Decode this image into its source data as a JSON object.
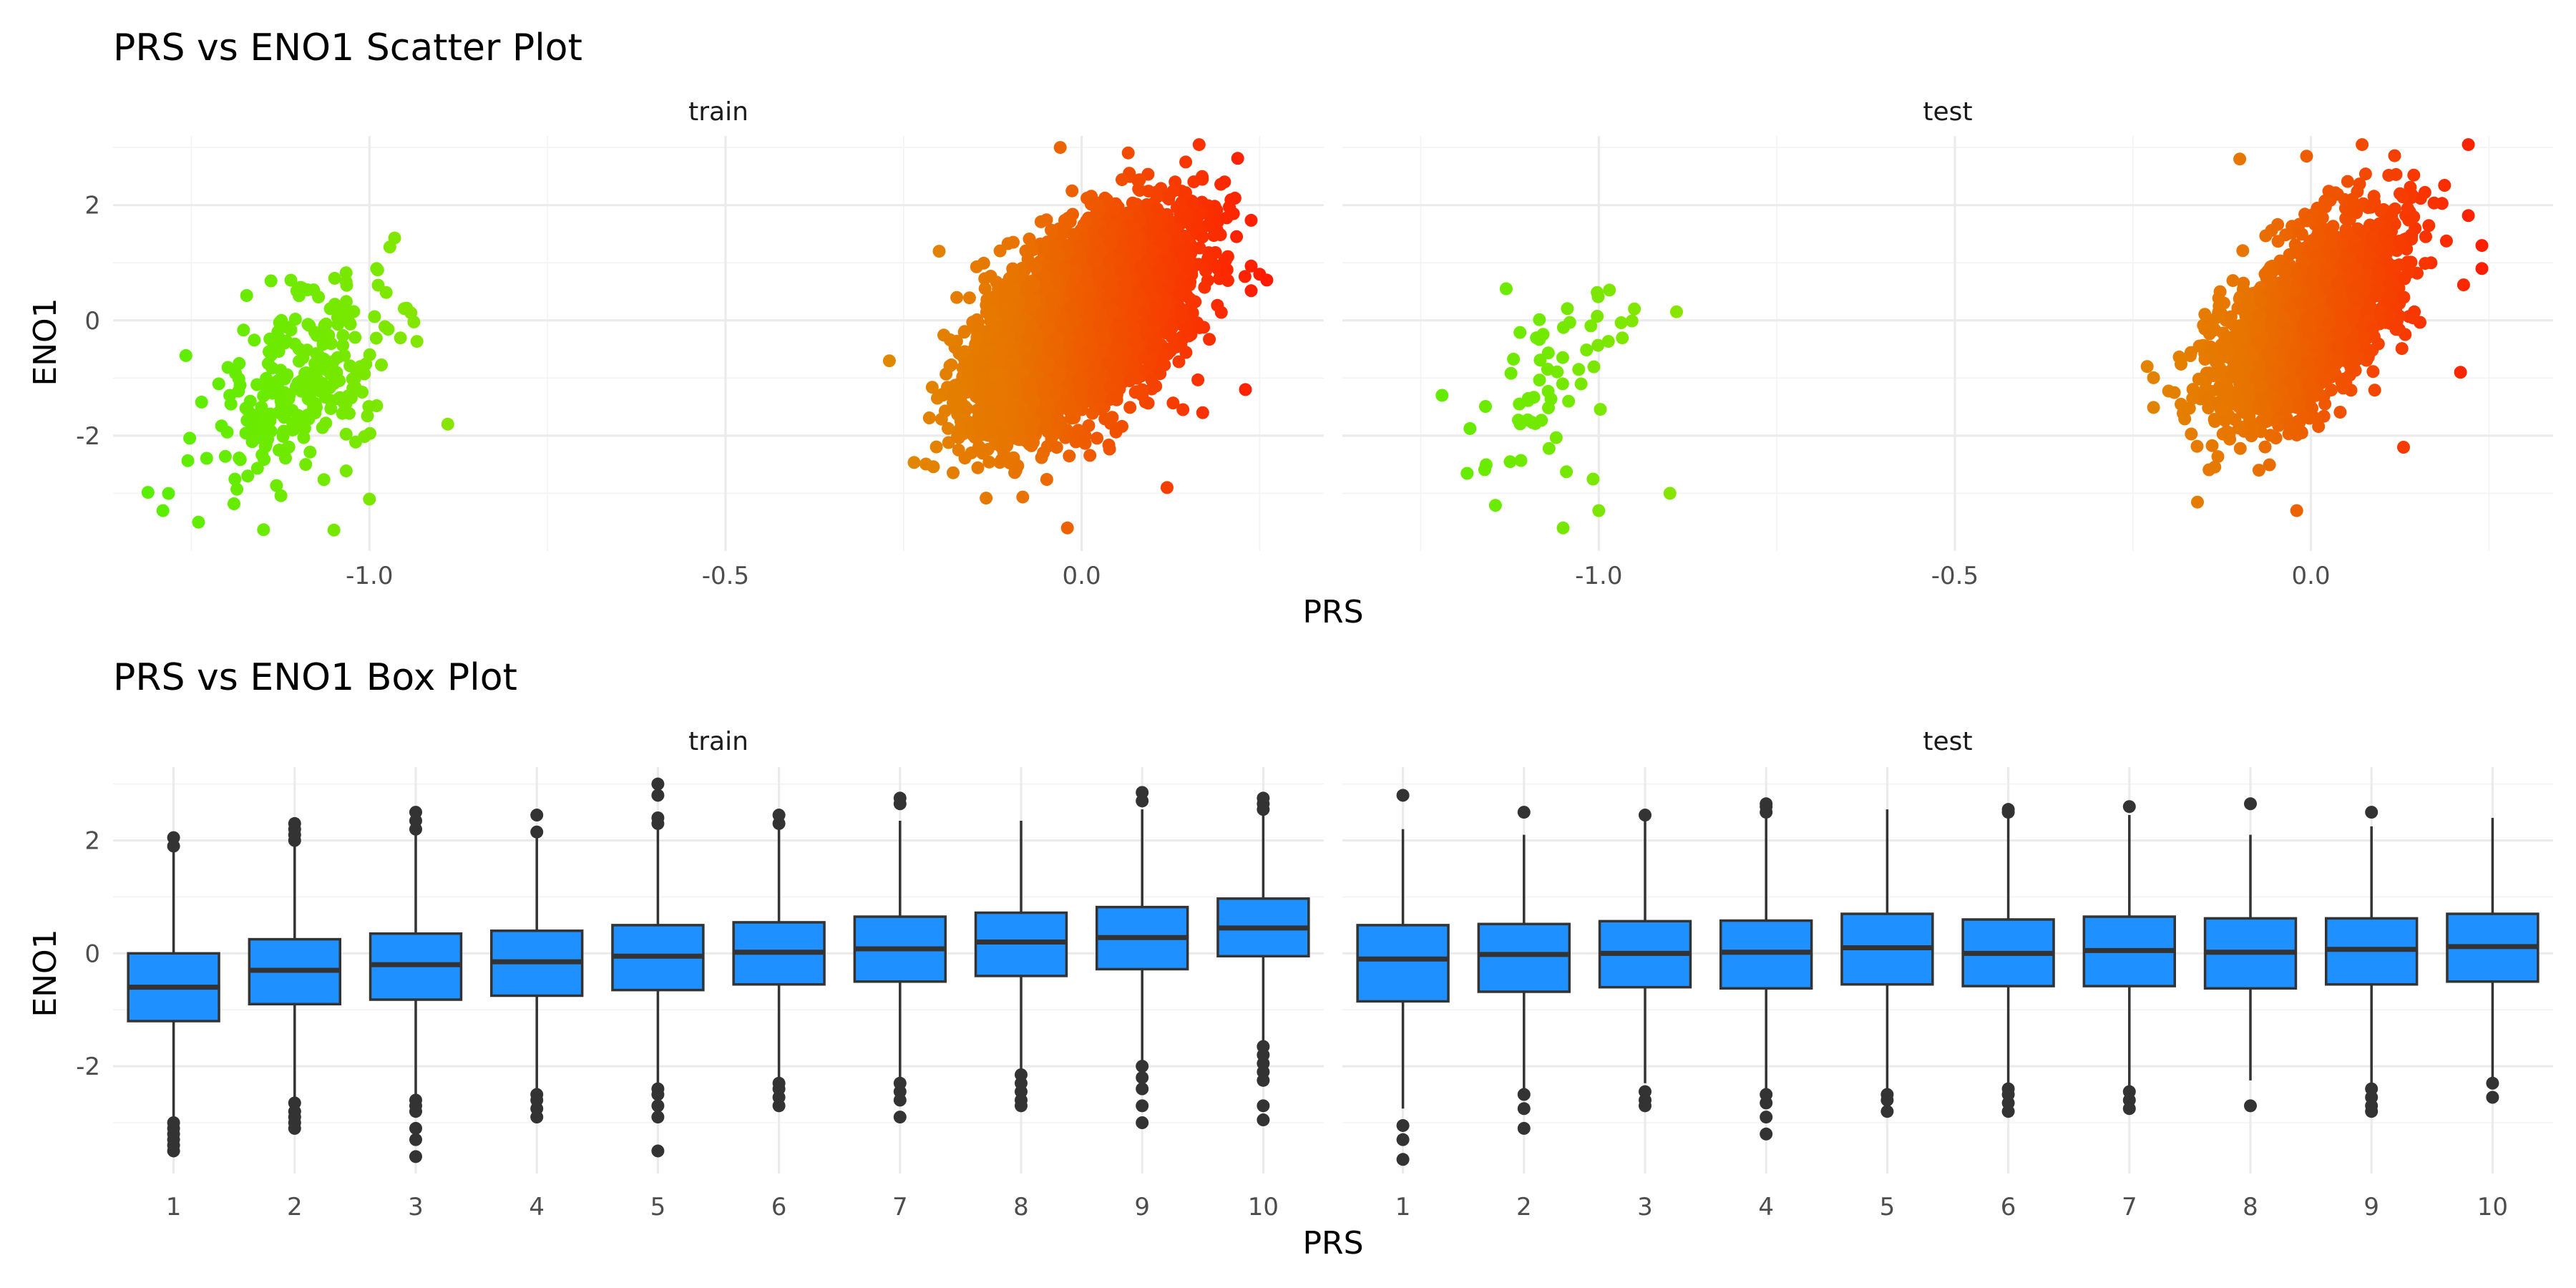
{
  "chart_data": [
    {
      "type": "scatter",
      "title": "PRS vs ENO1 Scatter Plot",
      "xlabel": "PRS",
      "ylabel": "ENO1",
      "xlim": [
        -1.36,
        0.34
      ],
      "ylim": [
        -4.0,
        3.2
      ],
      "x_ticks": [
        -1.0,
        -0.5,
        0.0
      ],
      "x_tick_labels": [
        "-1.0",
        "-0.5",
        "0.0"
      ],
      "y_ticks": [
        -2,
        0,
        2
      ],
      "y_tick_labels": [
        "-2",
        "0",
        "2"
      ],
      "grid": true,
      "color_gradient": {
        "low": "#55ee00",
        "mid": "#e08a00",
        "high": "#ff1a00"
      },
      "panels": [
        {
          "name": "train",
          "clusters": [
            {
              "x_center": -1.09,
              "x_sd": 0.065,
              "y_center": -1.1,
              "y_sd": 0.95,
              "n": 260,
              "extremes": [
                [
                  -1.29,
                  -3.3
                ],
                [
                  -1.24,
                  -3.5
                ],
                [
                  -0.99,
                  0.9
                ],
                [
                  -0.89,
                  -1.8
                ],
                [
                  -1.0,
                  -3.1
                ]
              ]
            },
            {
              "x_center": 0.0,
              "x_sd": 0.07,
              "y_center": 0.0,
              "y_sd": 0.85,
              "n": 5500,
              "extremes": [
                [
                  -0.27,
                  -0.7
                ],
                [
                  -0.2,
                  1.2
                ],
                [
                  0.25,
                  0.8
                ],
                [
                  0.26,
                  0.7
                ],
                [
                  -0.03,
                  3.0
                ],
                [
                  -0.02,
                  -3.6
                ],
                [
                  0.17,
                  -1.6
                ],
                [
                  0.23,
                  -1.2
                ],
                [
                  0.12,
                  -2.9
                ]
              ]
            }
          ]
        },
        {
          "name": "test",
          "clusters": [
            {
              "x_center": -1.07,
              "x_sd": 0.065,
              "y_center": -1.4,
              "y_sd": 0.9,
              "n": 60,
              "extremes": [
                [
                  -1.22,
                  -1.3
                ],
                [
                  -1.13,
                  0.55
                ],
                [
                  -0.9,
                  -3.0
                ],
                [
                  -1.05,
                  -3.6
                ],
                [
                  -0.95,
                  0.2
                ],
                [
                  -1.0,
                  -3.3
                ]
              ]
            },
            {
              "x_center": 0.0,
              "x_sd": 0.065,
              "y_center": 0.0,
              "y_sd": 0.85,
              "n": 2000,
              "extremes": [
                [
                  -0.23,
                  -0.8
                ],
                [
                  0.24,
                  1.3
                ],
                [
                  0.24,
                  0.9
                ],
                [
                  -0.1,
                  2.8
                ],
                [
                  -0.02,
                  -3.3
                ],
                [
                  0.13,
                  -2.2
                ],
                [
                  0.21,
                  -0.9
                ]
              ]
            }
          ]
        }
      ]
    },
    {
      "type": "box",
      "title": "PRS vs ENO1 Box Plot",
      "xlabel": "PRS",
      "ylabel": "ENO1",
      "categories": [
        "1",
        "2",
        "3",
        "4",
        "5",
        "6",
        "7",
        "8",
        "9",
        "10"
      ],
      "ylim": [
        -3.9,
        3.3
      ],
      "y_ticks": [
        -2,
        0,
        2
      ],
      "y_tick_labels": [
        "-2",
        "0",
        "2"
      ],
      "grid": true,
      "box_fill": "#1e90ff",
      "panels": [
        {
          "name": "train",
          "boxes": [
            {
              "q1": -1.2,
              "median": -0.6,
              "q3": 0.0,
              "whisker_low": -2.95,
              "whisker_high": 1.8,
              "outliers": [
                -3.0,
                -3.1,
                -3.2,
                -3.3,
                -3.4,
                -3.5,
                1.9,
                2.05
              ]
            },
            {
              "q1": -0.9,
              "median": -0.3,
              "q3": 0.25,
              "whisker_low": -2.6,
              "whisker_high": 1.9,
              "outliers": [
                -2.65,
                -2.8,
                -2.9,
                -3.0,
                -3.1,
                2.0,
                2.1,
                2.2,
                2.3
              ]
            },
            {
              "q1": -0.82,
              "median": -0.2,
              "q3": 0.35,
              "whisker_low": -2.55,
              "whisker_high": 2.1,
              "outliers": [
                -2.6,
                -2.7,
                -2.8,
                -3.1,
                -3.3,
                -3.6,
                2.2,
                2.35,
                2.5
              ]
            },
            {
              "q1": -0.75,
              "median": -0.15,
              "q3": 0.4,
              "whisker_low": -2.4,
              "whisker_high": 2.1,
              "outliers": [
                -2.5,
                -2.6,
                -2.75,
                -2.9,
                2.15,
                2.45
              ]
            },
            {
              "q1": -0.65,
              "median": -0.05,
              "q3": 0.5,
              "whisker_low": -2.3,
              "whisker_high": 2.2,
              "outliers": [
                -2.4,
                -2.5,
                -2.7,
                -2.9,
                -3.5,
                2.3,
                2.4,
                2.8,
                3.0
              ]
            },
            {
              "q1": -0.55,
              "median": 0.02,
              "q3": 0.55,
              "whisker_low": -2.2,
              "whisker_high": 2.2,
              "outliers": [
                -2.3,
                -2.4,
                -2.55,
                -2.7,
                2.3,
                2.45
              ]
            },
            {
              "q1": -0.5,
              "median": 0.08,
              "q3": 0.65,
              "whisker_low": -2.2,
              "whisker_high": 2.35,
              "outliers": [
                -2.3,
                -2.45,
                -2.6,
                -2.9,
                2.65,
                2.75
              ]
            },
            {
              "q1": -0.4,
              "median": 0.2,
              "q3": 0.72,
              "whisker_low": -2.05,
              "whisker_high": 2.35,
              "outliers": [
                -2.15,
                -2.3,
                -2.45,
                -2.6,
                -2.7
              ]
            },
            {
              "q1": -0.28,
              "median": 0.28,
              "q3": 0.82,
              "whisker_low": -1.9,
              "whisker_high": 2.55,
              "outliers": [
                -2.0,
                -2.2,
                -2.4,
                -2.7,
                -3.0,
                2.7,
                2.85
              ]
            },
            {
              "q1": -0.05,
              "median": 0.45,
              "q3": 0.97,
              "whisker_low": -1.55,
              "whisker_high": 2.5,
              "outliers": [
                -1.65,
                -1.8,
                -1.95,
                -2.1,
                -2.25,
                -2.7,
                -2.95,
                2.55,
                2.65,
                2.75
              ]
            }
          ]
        },
        {
          "name": "test",
          "boxes": [
            {
              "q1": -0.85,
              "median": -0.1,
              "q3": 0.5,
              "whisker_low": -2.75,
              "whisker_high": 2.2,
              "outliers": [
                -3.05,
                -3.3,
                -3.65,
                2.8
              ]
            },
            {
              "q1": -0.68,
              "median": -0.02,
              "q3": 0.52,
              "whisker_low": -2.4,
              "whisker_high": 2.1,
              "outliers": [
                -2.5,
                -2.75,
                -3.1,
                2.5
              ]
            },
            {
              "q1": -0.6,
              "median": 0.0,
              "q3": 0.57,
              "whisker_low": -2.3,
              "whisker_high": 2.4,
              "outliers": [
                -2.45,
                -2.6,
                -2.7,
                2.45
              ]
            },
            {
              "q1": -0.62,
              "median": 0.02,
              "q3": 0.58,
              "whisker_low": -2.4,
              "whisker_high": 2.4,
              "outliers": [
                -2.5,
                -2.65,
                -2.9,
                -3.2,
                2.5,
                2.6,
                2.65
              ]
            },
            {
              "q1": -0.55,
              "median": 0.1,
              "q3": 0.7,
              "whisker_low": -2.4,
              "whisker_high": 2.55,
              "outliers": [
                -2.5,
                -2.6,
                -2.8
              ]
            },
            {
              "q1": -0.58,
              "median": 0.0,
              "q3": 0.6,
              "whisker_low": -2.3,
              "whisker_high": 2.45,
              "outliers": [
                -2.4,
                -2.5,
                -2.65,
                -2.8,
                2.5,
                2.55
              ]
            },
            {
              "q1": -0.58,
              "median": 0.05,
              "q3": 0.65,
              "whisker_low": -2.35,
              "whisker_high": 2.45,
              "outliers": [
                -2.45,
                -2.6,
                -2.75,
                2.6
              ]
            },
            {
              "q1": -0.62,
              "median": 0.02,
              "q3": 0.62,
              "whisker_low": -2.25,
              "whisker_high": 2.1,
              "outliers": [
                -2.7,
                2.65
              ]
            },
            {
              "q1": -0.55,
              "median": 0.07,
              "q3": 0.62,
              "whisker_low": -2.3,
              "whisker_high": 2.25,
              "outliers": [
                -2.4,
                -2.55,
                -2.7,
                -2.8,
                2.5
              ]
            },
            {
              "q1": -0.5,
              "median": 0.12,
              "q3": 0.7,
              "whisker_low": -2.2,
              "whisker_high": 2.4,
              "outliers": [
                -2.3,
                -2.55
              ]
            }
          ]
        }
      ]
    }
  ]
}
